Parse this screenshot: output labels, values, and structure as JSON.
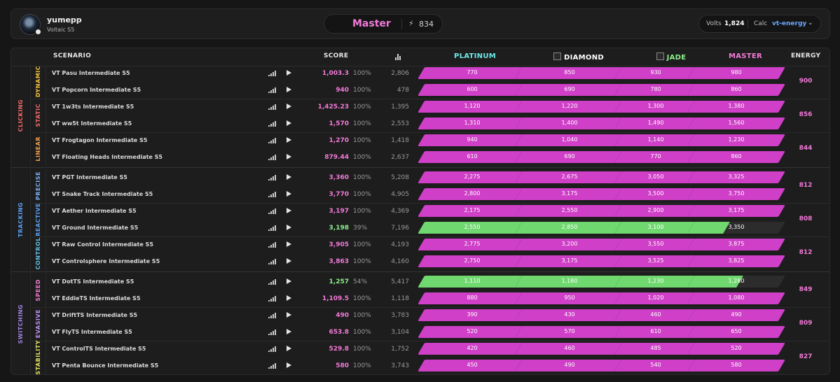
{
  "profile": {
    "username": "yumepp",
    "subtitle": "Voltaic S5",
    "rank": "Master",
    "energy": "834"
  },
  "settings": {
    "volts_label": "Volts",
    "volts_value": "1,824",
    "calc_label": "Calc",
    "calc_value": "vt-energy"
  },
  "columns": {
    "scenario": "SCENARIO",
    "score": "SCORE",
    "platinum": "PLATINUM",
    "diamond": "DIAMOND",
    "jade": "JADE",
    "master": "MASTER",
    "energy": "ENERGY"
  },
  "colors": {
    "platinum": "#6ee8e8",
    "diamond": "#ffffff",
    "jade": "#8ef08e",
    "master": "#f37ad9",
    "bar_pink": "#cf3fc7",
    "bar_green": "#6fd86f",
    "bar_track": "#2c2c2c"
  },
  "categories": [
    {
      "name": "CLICKING",
      "color": "#f06a6a",
      "subs": [
        {
          "name": "DYNAMIC",
          "color": "#f0c040",
          "energy": "900",
          "scenarios": [
            {
              "name": "VT Pasu Intermediate S5",
              "score": "1,003.3",
              "accuracy": "100%",
              "points": "2,806",
              "thresholds": [
                "770",
                "850",
                "930",
                "980"
              ],
              "progress": [
                1,
                1,
                1,
                1
              ],
              "complete": true
            },
            {
              "name": "VT Popcorn Intermediate S5",
              "score": "940",
              "accuracy": "100%",
              "points": "478",
              "thresholds": [
                "600",
                "690",
                "780",
                "860"
              ],
              "progress": [
                1,
                1,
                1,
                1
              ],
              "complete": true
            }
          ]
        },
        {
          "name": "STATIC",
          "color": "#f06a6a",
          "energy": "856",
          "scenarios": [
            {
              "name": "VT 1w3ts Intermediate S5",
              "score": "1,425.23",
              "accuracy": "100%",
              "points": "1,395",
              "thresholds": [
                "1,120",
                "1,220",
                "1,300",
                "1,380"
              ],
              "progress": [
                1,
                1,
                1,
                1
              ],
              "complete": true
            },
            {
              "name": "VT ww5t Intermediate S5",
              "score": "1,570",
              "accuracy": "100%",
              "points": "2,553",
              "thresholds": [
                "1,310",
                "1,400",
                "1,490",
                "1,560"
              ],
              "progress": [
                1,
                1,
                1,
                1
              ],
              "complete": true
            }
          ]
        },
        {
          "name": "LINEAR",
          "color": "#f0a050",
          "energy": "844",
          "scenarios": [
            {
              "name": "VT Frogtagon Intermediate S5",
              "score": "1,270",
              "accuracy": "100%",
              "points": "1,418",
              "thresholds": [
                "940",
                "1,040",
                "1,140",
                "1,230"
              ],
              "progress": [
                1,
                1,
                1,
                1
              ],
              "complete": true
            },
            {
              "name": "VT Floating Heads Intermediate S5",
              "score": "879.44",
              "accuracy": "100%",
              "points": "2,637",
              "thresholds": [
                "610",
                "690",
                "770",
                "860"
              ],
              "progress": [
                1,
                1,
                1,
                1
              ],
              "complete": true
            }
          ]
        }
      ]
    },
    {
      "name": "TRACKING",
      "color": "#5aa0f0",
      "subs": [
        {
          "name": "PRECISE",
          "color": "#7ab0f0",
          "energy": "812",
          "scenarios": [
            {
              "name": "VT PGT Intermediate S5",
              "score": "3,360",
              "accuracy": "100%",
              "points": "5,208",
              "thresholds": [
                "2,275",
                "2,675",
                "3,050",
                "3,325"
              ],
              "progress": [
                1,
                1,
                1,
                1
              ],
              "complete": true
            },
            {
              "name": "VT Snake Track Intermediate S5",
              "score": "3,770",
              "accuracy": "100%",
              "points": "4,905",
              "thresholds": [
                "2,800",
                "3,175",
                "3,500",
                "3,750"
              ],
              "progress": [
                1,
                1,
                1,
                1
              ],
              "complete": true
            }
          ]
        },
        {
          "name": "REACTIVE",
          "color": "#5aa0f0",
          "energy": "808",
          "scenarios": [
            {
              "name": "VT Aether Intermediate S5",
              "score": "3,197",
              "accuracy": "100%",
              "points": "4,369",
              "thresholds": [
                "2,175",
                "2,550",
                "2,900",
                "3,175"
              ],
              "progress": [
                1,
                1,
                1,
                1
              ],
              "complete": true
            },
            {
              "name": "VT Ground Intermediate S5",
              "score": "3,198",
              "accuracy": "39%",
              "points": "7,196",
              "thresholds": [
                "2,550",
                "2,850",
                "3,100",
                "3,350"
              ],
              "progress": [
                1,
                1,
                1,
                0.39
              ],
              "complete": false
            }
          ]
        },
        {
          "name": "CONTROL",
          "color": "#60c0e0",
          "energy": "812",
          "scenarios": [
            {
              "name": "VT Raw Control Intermediate S5",
              "score": "3,905",
              "accuracy": "100%",
              "points": "4,193",
              "thresholds": [
                "2,775",
                "3,200",
                "3,550",
                "3,875"
              ],
              "progress": [
                1,
                1,
                1,
                1
              ],
              "complete": true
            },
            {
              "name": "VT Controlsphere Intermediate S5",
              "score": "3,863",
              "accuracy": "100%",
              "points": "4,160",
              "thresholds": [
                "2,750",
                "3,175",
                "3,525",
                "3,825"
              ],
              "progress": [
                1,
                1,
                1,
                1
              ],
              "complete": true
            }
          ]
        }
      ]
    },
    {
      "name": "SWITCHING",
      "color": "#a080e0",
      "subs": [
        {
          "name": "SPEED",
          "color": "#f07ad0",
          "energy": "849",
          "scenarios": [
            {
              "name": "VT DotTS Intermediate S5",
              "score": "1,257",
              "accuracy": "54%",
              "points": "5,417",
              "thresholds": [
                "1,110",
                "1,180",
                "1,230",
                "1,280"
              ],
              "progress": [
                1,
                1,
                1,
                0.54
              ],
              "complete": false
            },
            {
              "name": "VT EddieTS Intermediate S5",
              "score": "1,109.5",
              "accuracy": "100%",
              "points": "1,118",
              "thresholds": [
                "880",
                "950",
                "1,020",
                "1,080"
              ],
              "progress": [
                1,
                1,
                1,
                1
              ],
              "complete": true
            }
          ]
        },
        {
          "name": "EVASIVE",
          "color": "#c090f0",
          "energy": "809",
          "scenarios": [
            {
              "name": "VT DriftTS Intermediate S5",
              "score": "490",
              "accuracy": "100%",
              "points": "3,783",
              "thresholds": [
                "390",
                "430",
                "460",
                "490"
              ],
              "progress": [
                1,
                1,
                1,
                1
              ],
              "complete": true
            },
            {
              "name": "VT FlyTS Intermediate S5",
              "score": "653.8",
              "accuracy": "100%",
              "points": "3,104",
              "thresholds": [
                "520",
                "570",
                "610",
                "650"
              ],
              "progress": [
                1,
                1,
                1,
                1
              ],
              "complete": true
            }
          ]
        },
        {
          "name": "STABILITY",
          "color": "#e0e060",
          "energy": "827",
          "scenarios": [
            {
              "name": "VT ControlTS Intermediate S5",
              "score": "529.8",
              "accuracy": "100%",
              "points": "1,752",
              "thresholds": [
                "420",
                "460",
                "485",
                "520"
              ],
              "progress": [
                1,
                1,
                1,
                1
              ],
              "complete": true
            },
            {
              "name": "VT Penta Bounce Intermediate S5",
              "score": "580",
              "accuracy": "100%",
              "points": "3,743",
              "thresholds": [
                "450",
                "490",
                "540",
                "580"
              ],
              "progress": [
                1,
                1,
                1,
                1
              ],
              "complete": true
            }
          ]
        }
      ]
    }
  ]
}
